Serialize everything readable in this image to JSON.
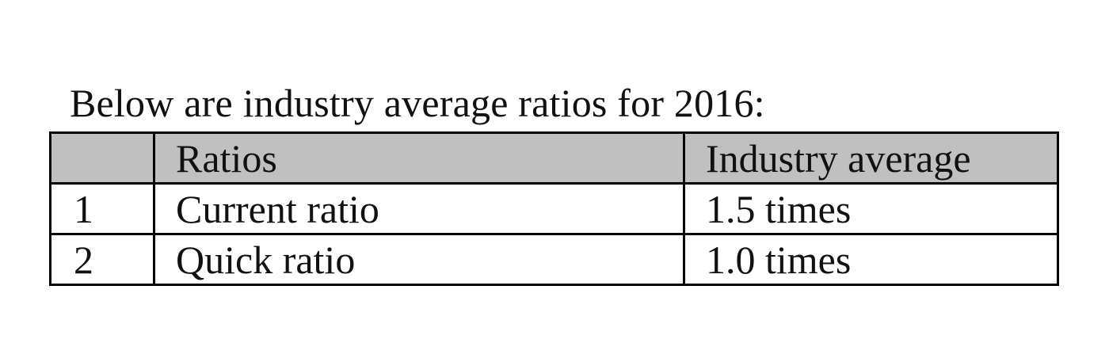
{
  "caption": "Below are industry average ratios for 2016:",
  "table": {
    "header": {
      "number": "",
      "ratio": "Ratios",
      "average": "Industry average"
    },
    "rows": [
      {
        "number": "1",
        "ratio": "Current ratio",
        "average": "1.5 times"
      },
      {
        "number": "2",
        "ratio": "Quick ratio",
        "average": "1.0 times"
      }
    ]
  },
  "colors": {
    "header_background": "#c0c0c0",
    "border": "#000000",
    "text": "#111111"
  }
}
